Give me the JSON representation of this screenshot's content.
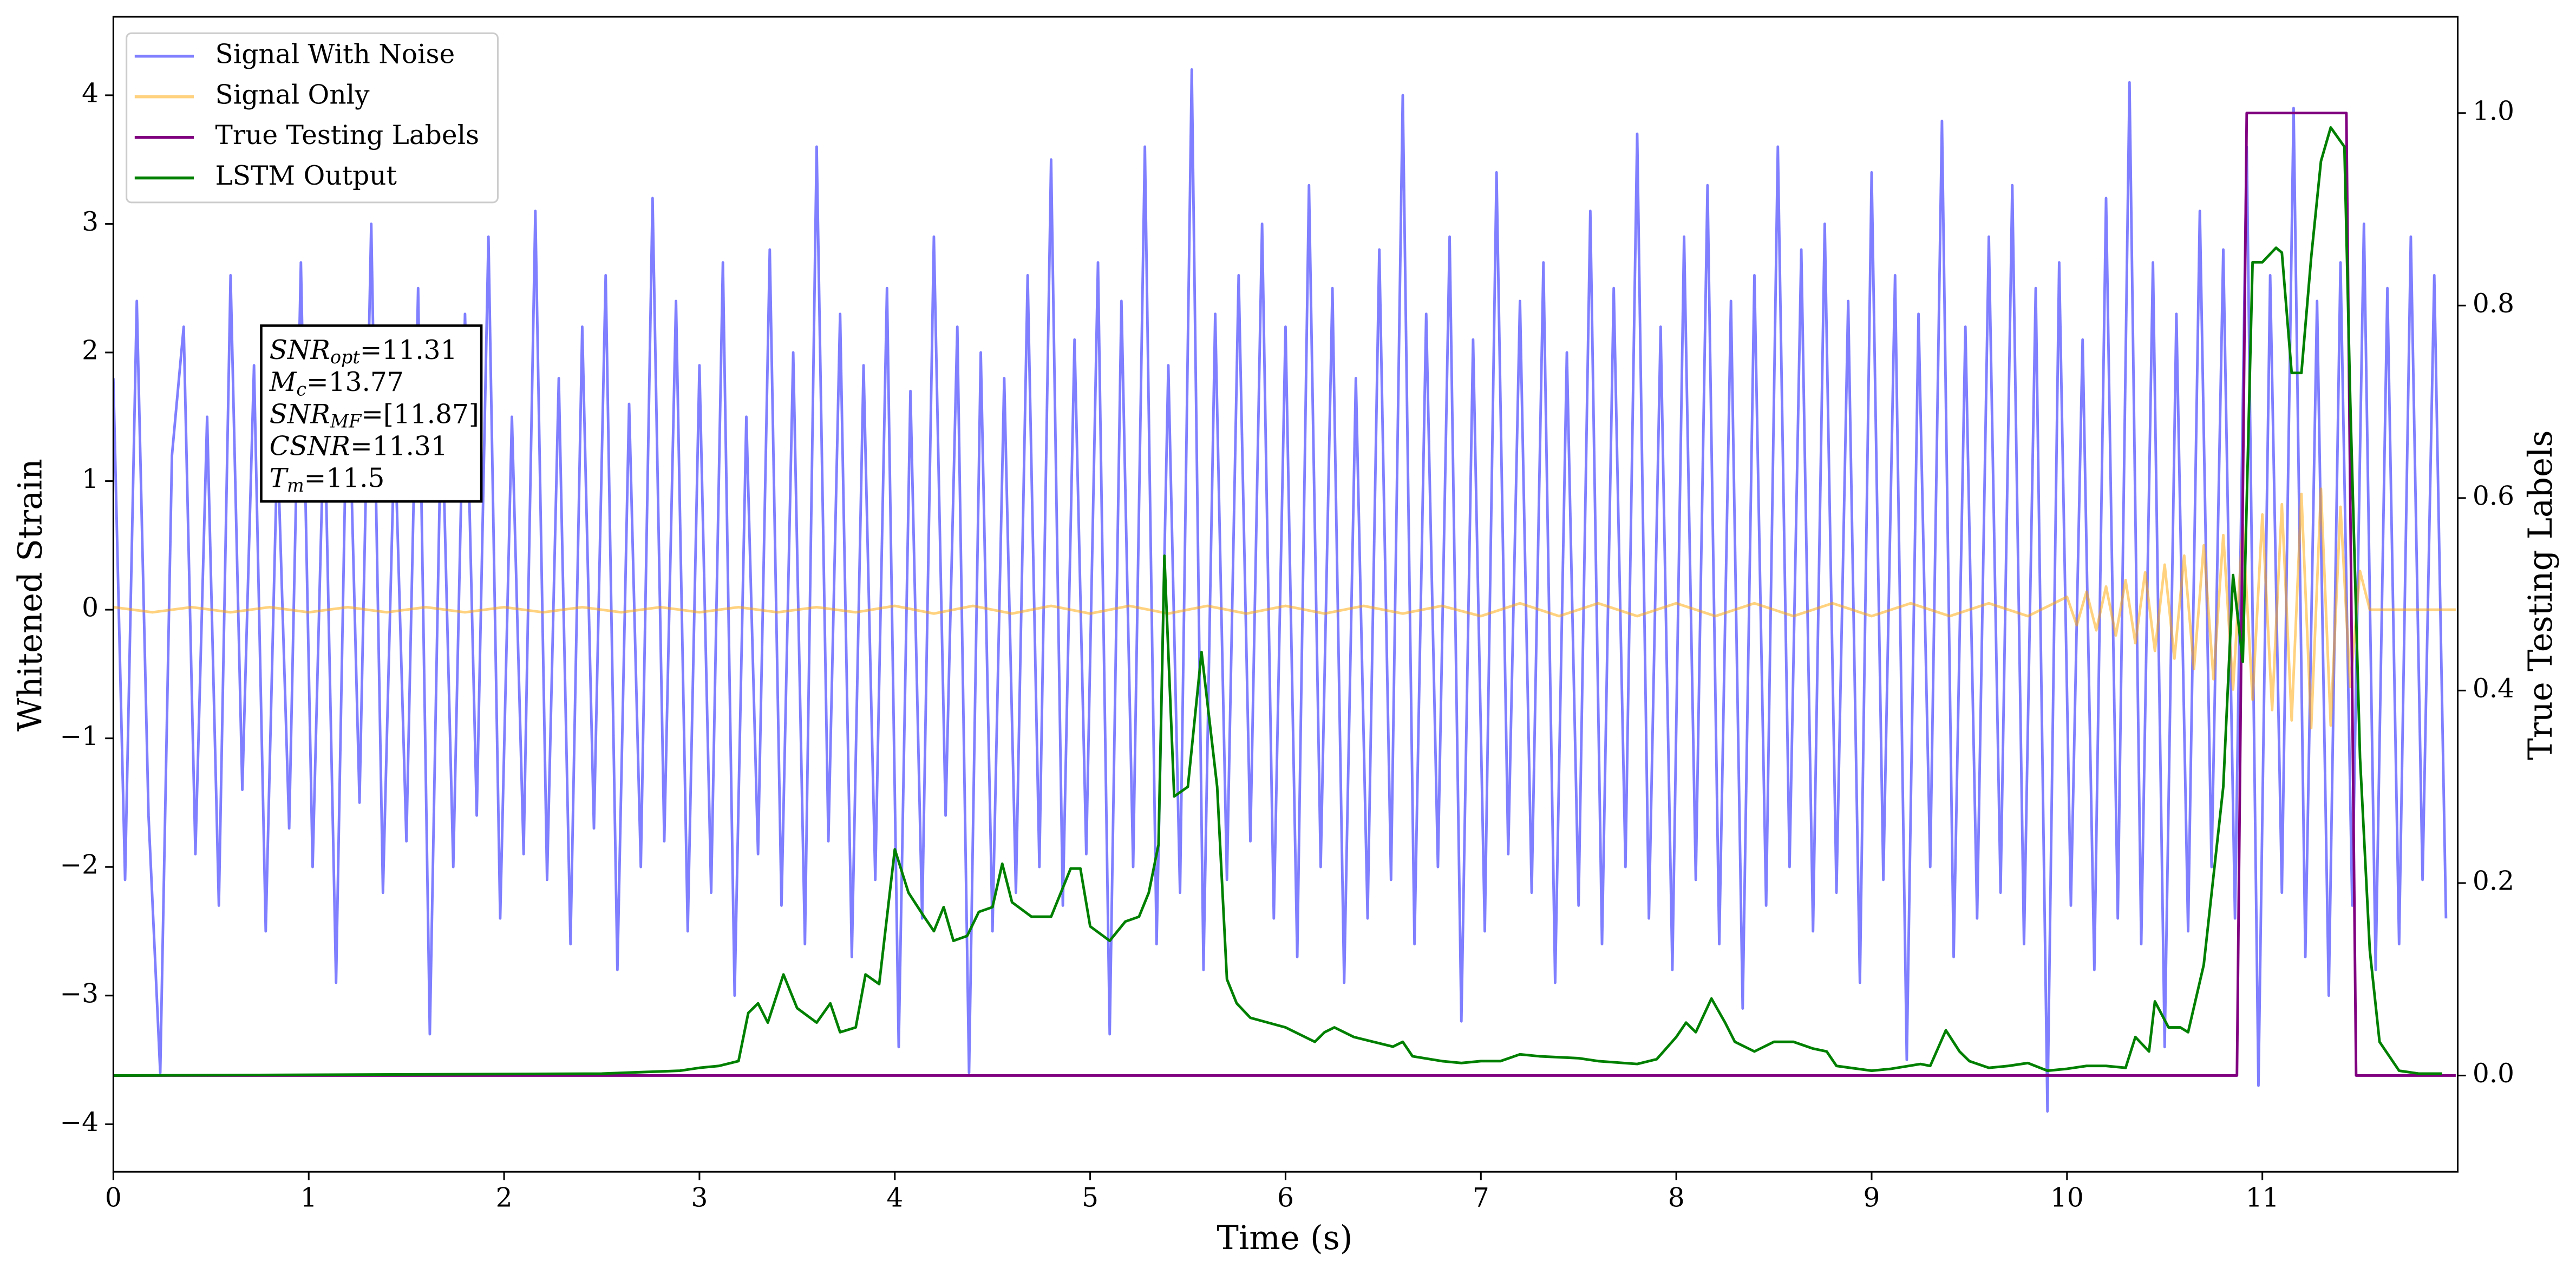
{
  "chart_data": {
    "type": "line",
    "xlabel": "Time (s)",
    "ylabel": "Whitened Strain",
    "y2label": "True Testing Labels",
    "xlim": [
      0,
      12
    ],
    "ylim": [
      -4.37,
      4.61
    ],
    "y2lim": [
      -0.1,
      1.1
    ],
    "xticks": [
      0,
      1,
      2,
      3,
      4,
      5,
      6,
      7,
      8,
      9,
      10,
      11
    ],
    "yticks": [
      {
        "value": -4,
        "label": "−4"
      },
      {
        "value": -3,
        "label": "−3"
      },
      {
        "value": -2,
        "label": "−2"
      },
      {
        "value": -1,
        "label": "−1"
      },
      0,
      1,
      2,
      3,
      4
    ],
    "y2ticks": [
      {
        "value": 0,
        "label": "0.0"
      },
      {
        "value": 0.2,
        "label": "0.2"
      },
      {
        "value": 0.4,
        "label": "0.4"
      },
      {
        "value": 0.6,
        "label": "0.6"
      },
      {
        "value": 0.8,
        "label": "0.8"
      },
      {
        "value": 1,
        "label": "1.0"
      }
    ],
    "legend": "upper left",
    "annotations": [
      {
        "base": "SNR",
        "sub": "opt",
        "rest": "=11.31"
      },
      {
        "base": "M",
        "sub": "c",
        "rest": "=13.77"
      },
      {
        "base": "SNR",
        "sub": "MF",
        "rest": "=[11.87]"
      },
      {
        "base": "CSNR",
        "rest": "=11.31"
      },
      {
        "base": "T",
        "sub": "m",
        "rest": "=11.5"
      }
    ],
    "series": [
      {
        "name": "Signal With Noise",
        "color": "#0000ff",
        "alpha": 0.5,
        "x": [
          0,
          0.06,
          0.12,
          0.18,
          0.24,
          0.3,
          0.36,
          0.42,
          0.48,
          0.54,
          0.6,
          0.66,
          0.72,
          0.78,
          0.84,
          0.9,
          0.96,
          1.02,
          1.08,
          1.14,
          1.2,
          1.26,
          1.32,
          1.38,
          1.44,
          1.5,
          1.56,
          1.62,
          1.68,
          1.74,
          1.8,
          1.86,
          1.92,
          1.98,
          2.04,
          2.1,
          2.16,
          2.22,
          2.28,
          2.34,
          2.4,
          2.46,
          2.52,
          2.58,
          2.64,
          2.7,
          2.76,
          2.82,
          2.88,
          2.94,
          3,
          3.06,
          3.12,
          3.18,
          3.24,
          3.3,
          3.36,
          3.42,
          3.48,
          3.54,
          3.6,
          3.66,
          3.72,
          3.78,
          3.84,
          3.9,
          3.96,
          4.02,
          4.08,
          4.14,
          4.2,
          4.26,
          4.32,
          4.38,
          4.44,
          4.5,
          4.56,
          4.62,
          4.68,
          4.74,
          4.8,
          4.86,
          4.92,
          4.98,
          5.04,
          5.1,
          5.16,
          5.22,
          5.28,
          5.34,
          5.4,
          5.46,
          5.52,
          5.58,
          5.64,
          5.7,
          5.76,
          5.82,
          5.88,
          5.94,
          6,
          6.06,
          6.12,
          6.18,
          6.24,
          6.3,
          6.36,
          6.42,
          6.48,
          6.54,
          6.6,
          6.66,
          6.72,
          6.78,
          6.84,
          6.9,
          6.96,
          7.02,
          7.08,
          7.14,
          7.2,
          7.26,
          7.32,
          7.38,
          7.44,
          7.5,
          7.56,
          7.62,
          7.68,
          7.74,
          7.8,
          7.86,
          7.92,
          7.98,
          8.04,
          8.1,
          8.16,
          8.22,
          8.28,
          8.34,
          8.4,
          8.46,
          8.52,
          8.58,
          8.64,
          8.7,
          8.76,
          8.82,
          8.88,
          8.94,
          9,
          9.06,
          9.12,
          9.18,
          9.24,
          9.3,
          9.36,
          9.42,
          9.48,
          9.54,
          9.6,
          9.66,
          9.72,
          9.78,
          9.84,
          9.9,
          9.96,
          10.02,
          10.08,
          10.14,
          10.2,
          10.26,
          10.32,
          10.38,
          10.44,
          10.5,
          10.56,
          10.62,
          10.68,
          10.74,
          10.8,
          10.86,
          10.92,
          10.98,
          11.04,
          11.1,
          11.16,
          11.22,
          11.28,
          11.34,
          11.4,
          11.46,
          11.52,
          11.58,
          11.64,
          11.7,
          11.76,
          11.82,
          11.88,
          11.94
        ],
        "values": [
          1.8,
          -2.1,
          2.4,
          -1.6,
          -3.6,
          1.2,
          2.2,
          -1.9,
          1.5,
          -2.3,
          2.6,
          -1.4,
          1.9,
          -2.5,
          1.3,
          -1.7,
          2.7,
          -2.0,
          1.6,
          -2.9,
          2.1,
          -1.5,
          3.0,
          -2.2,
          1.4,
          -1.8,
          2.5,
          -3.3,
          1.7,
          -2.0,
          2.3,
          -1.6,
          2.9,
          -2.4,
          1.5,
          -1.9,
          3.1,
          -2.1,
          1.8,
          -2.6,
          2.2,
          -1.7,
          2.6,
          -2.8,
          1.6,
          -2.0,
          3.2,
          -1.8,
          2.4,
          -2.5,
          1.9,
          -2.2,
          2.7,
          -3.0,
          1.5,
          -1.9,
          2.8,
          -2.3,
          2.0,
          -2.6,
          3.6,
          -1.8,
          2.3,
          -2.7,
          1.9,
          -2.1,
          2.5,
          -3.4,
          1.7,
          -2.4,
          2.9,
          -1.6,
          2.2,
          -3.6,
          2.0,
          -2.5,
          1.8,
          -2.2,
          2.6,
          -2.0,
          3.5,
          -2.3,
          2.1,
          -1.9,
          2.7,
          -3.3,
          2.4,
          -2.0,
          3.6,
          -2.6,
          1.9,
          -2.2,
          4.2,
          -2.8,
          2.3,
          -2.1,
          2.6,
          -1.8,
          3.0,
          -2.4,
          2.2,
          -2.7,
          3.3,
          -2.0,
          2.5,
          -2.9,
          1.8,
          -2.4,
          2.8,
          -2.1,
          4.0,
          -2.6,
          2.3,
          -2.0,
          2.9,
          -3.2,
          2.1,
          -2.5,
          3.4,
          -1.9,
          2.4,
          -2.2,
          2.7,
          -2.9,
          2.0,
          -2.3,
          3.1,
          -2.6,
          2.5,
          -2.0,
          3.7,
          -2.4,
          2.2,
          -2.8,
          2.9,
          -2.1,
          3.3,
          -2.6,
          2.4,
          -3.1,
          2.6,
          -2.3,
          3.6,
          -2.0,
          2.8,
          -2.5,
          3.0,
          -2.2,
          2.4,
          -2.9,
          3.4,
          -2.1,
          2.6,
          -3.5,
          2.3,
          -2.0,
          3.8,
          -2.7,
          2.2,
          -2.4,
          2.9,
          -2.2,
          3.3,
          -2.6,
          2.5,
          -3.9,
          2.7,
          -2.3,
          2.1,
          -2.8,
          3.2,
          -2.4,
          4.1,
          -2.6,
          2.7,
          -3.4,
          2.3,
          -2.5,
          3.1,
          -2.0,
          2.8,
          -2.4,
          3.6,
          -3.7,
          2.6,
          -2.2,
          3.9,
          -2.7,
          2.4,
          -3.0,
          2.7,
          -2.3,
          3.0,
          -2.8,
          2.5,
          -2.6,
          2.9,
          -2.1,
          2.6,
          -2.4
        ]
      },
      {
        "name": "Signal Only",
        "color": "#ffa500",
        "alpha": 0.5,
        "x": [
          0,
          0.2,
          0.4,
          0.6,
          0.8,
          1,
          1.2,
          1.4,
          1.6,
          1.8,
          2,
          2.2,
          2.4,
          2.6,
          2.8,
          3,
          3.2,
          3.4,
          3.6,
          3.8,
          4,
          4.2,
          4.4,
          4.6,
          4.8,
          5,
          5.2,
          5.4,
          5.6,
          5.8,
          6,
          6.2,
          6.4,
          6.6,
          6.8,
          7,
          7.2,
          7.4,
          7.6,
          7.8,
          8,
          8.2,
          8.4,
          8.6,
          8.8,
          9,
          9.2,
          9.4,
          9.6,
          9.8,
          10,
          10.05,
          10.1,
          10.15,
          10.2,
          10.25,
          10.3,
          10.35,
          10.4,
          10.45,
          10.5,
          10.55,
          10.6,
          10.65,
          10.7,
          10.75,
          10.8,
          10.85,
          10.9,
          10.95,
          11,
          11.05,
          11.1,
          11.15,
          11.2,
          11.25,
          11.3,
          11.35,
          11.4,
          11.45,
          11.5,
          11.55,
          11.99
        ],
        "values": [
          0.02,
          -0.02,
          0.02,
          -0.02,
          0.02,
          -0.02,
          0.02,
          -0.02,
          0.02,
          -0.02,
          0.02,
          -0.02,
          0.02,
          -0.02,
          0.02,
          -0.02,
          0.02,
          -0.02,
          0.02,
          -0.02,
          0.03,
          -0.03,
          0.03,
          -0.03,
          0.03,
          -0.03,
          0.03,
          -0.03,
          0.03,
          -0.03,
          0.03,
          -0.03,
          0.03,
          -0.03,
          0.03,
          -0.05,
          0.05,
          -0.05,
          0.05,
          -0.05,
          0.05,
          -0.05,
          0.05,
          -0.05,
          0.05,
          -0.05,
          0.05,
          -0.05,
          0.05,
          -0.05,
          0.1,
          -0.12,
          0.14,
          -0.16,
          0.18,
          -0.2,
          0.23,
          -0.26,
          0.29,
          -0.32,
          0.35,
          -0.38,
          0.42,
          -0.46,
          0.5,
          -0.54,
          0.58,
          -0.62,
          0.66,
          -0.7,
          0.74,
          -0.78,
          0.82,
          -0.86,
          0.9,
          -0.92,
          0.94,
          -0.9,
          0.8,
          -0.6,
          0.3,
          0,
          0
        ]
      },
      {
        "name": "True Testing Labels",
        "color": "#800080",
        "axis": "y2",
        "x": [
          0,
          10.87,
          10.92,
          11.43,
          11.48,
          11.99
        ],
        "values": [
          0,
          0,
          1,
          1,
          0,
          0
        ]
      },
      {
        "name": "LSTM Output",
        "color": "#008000",
        "axis": "y2",
        "x": [
          0,
          2.5,
          2.9,
          3,
          3.1,
          3.2,
          3.25,
          3.3,
          3.35,
          3.43,
          3.5,
          3.6,
          3.67,
          3.72,
          3.8,
          3.85,
          3.92,
          4,
          4.07,
          4.15,
          4.2,
          4.25,
          4.3,
          4.37,
          4.43,
          4.5,
          4.55,
          4.6,
          4.7,
          4.8,
          4.85,
          4.9,
          4.95,
          5,
          5.1,
          5.18,
          5.25,
          5.3,
          5.35,
          5.38,
          5.43,
          5.5,
          5.57,
          5.65,
          5.7,
          5.75,
          5.82,
          6,
          6.1,
          6.15,
          6.2,
          6.25,
          6.35,
          6.45,
          6.55,
          6.6,
          6.65,
          6.8,
          6.9,
          7,
          7.1,
          7.2,
          7.3,
          7.5,
          7.6,
          7.8,
          7.9,
          8,
          8.05,
          8.1,
          8.18,
          8.25,
          8.3,
          8.4,
          8.5,
          8.6,
          8.7,
          8.77,
          8.82,
          9,
          9.1,
          9.25,
          9.3,
          9.38,
          9.45,
          9.5,
          9.6,
          9.7,
          9.8,
          9.9,
          10,
          10.1,
          10.2,
          10.3,
          10.35,
          10.42,
          10.45,
          10.52,
          10.58,
          10.62,
          10.7,
          10.8,
          10.85,
          10.9,
          10.95,
          11,
          11.07,
          11.1,
          11.15,
          11.2,
          11.25,
          11.3,
          11.35,
          11.42,
          11.45,
          11.5,
          11.55,
          11.6,
          11.7,
          11.8,
          11.92
        ],
        "values": [
          0,
          0.002,
          0.005,
          0.008,
          0.01,
          0.015,
          0.065,
          0.075,
          0.055,
          0.105,
          0.07,
          0.055,
          0.075,
          0.045,
          0.05,
          0.105,
          0.095,
          0.235,
          0.19,
          0.165,
          0.15,
          0.175,
          0.14,
          0.145,
          0.17,
          0.175,
          0.22,
          0.18,
          0.165,
          0.165,
          0.19,
          0.215,
          0.215,
          0.155,
          0.14,
          0.16,
          0.165,
          0.19,
          0.24,
          0.54,
          0.29,
          0.3,
          0.44,
          0.3,
          0.1,
          0.075,
          0.06,
          0.05,
          0.04,
          0.035,
          0.045,
          0.05,
          0.04,
          0.035,
          0.03,
          0.035,
          0.02,
          0.015,
          0.013,
          0.015,
          0.015,
          0.022,
          0.02,
          0.018,
          0.015,
          0.012,
          0.017,
          0.04,
          0.055,
          0.045,
          0.08,
          0.055,
          0.035,
          0.025,
          0.035,
          0.035,
          0.028,
          0.025,
          0.01,
          0.005,
          0.007,
          0.012,
          0.01,
          0.047,
          0.025,
          0.015,
          0.008,
          0.01,
          0.013,
          0.005,
          0.007,
          0.01,
          0.01,
          0.008,
          0.04,
          0.025,
          0.077,
          0.05,
          0.05,
          0.045,
          0.115,
          0.3,
          0.52,
          0.43,
          0.845,
          0.845,
          0.86,
          0.855,
          0.73,
          0.73,
          0.85,
          0.95,
          0.985,
          0.965,
          0.7,
          0.33,
          0.13,
          0.035,
          0.005,
          0.002,
          0.002
        ]
      }
    ]
  }
}
